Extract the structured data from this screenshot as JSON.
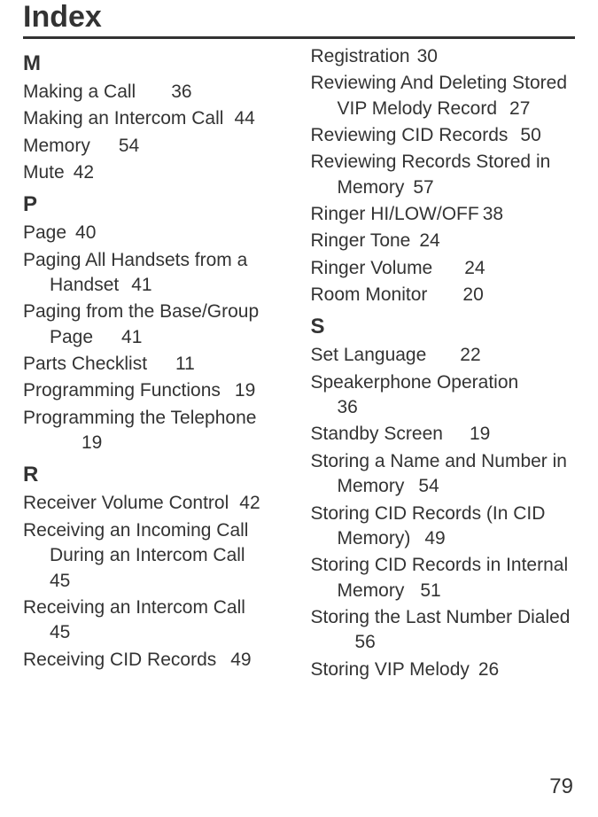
{
  "title": "Index",
  "pageNumber": "79",
  "sections": [
    {
      "letter": "M",
      "entries": [
        {
          "text": "Making a Call",
          "page": "36",
          "gap": 40
        },
        {
          "text": "Making an Intercom Call",
          "page": "44",
          "gap": 12
        },
        {
          "text": "Memory",
          "page": "54",
          "gap": 32
        },
        {
          "text": "Mute",
          "page": "42",
          "gap": 10
        }
      ]
    },
    {
      "letter": "P",
      "entries": [
        {
          "text": "Page",
          "page": "40",
          "gap": 10
        },
        {
          "text": "Paging All Handsets from a Handset",
          "page": "41",
          "gap": 14
        },
        {
          "text": "Paging from the Base/Group Page",
          "page": "41",
          "gap": 32
        },
        {
          "text": "Parts Checklist",
          "page": "11",
          "gap": 32
        },
        {
          "text": "Programming Functions",
          "page": "19",
          "gap": 16
        },
        {
          "text": "Programming the Telephone",
          "page": "19",
          "gap": 36
        }
      ]
    },
    {
      "letter": "R",
      "entries": [
        {
          "text": "Receiver Volume Control",
          "page": "42",
          "gap": 12
        },
        {
          "text": "Receiving an Incoming Call During an Intercom Call",
          "page": "45",
          "gap": 40
        },
        {
          "text": "Receiving an Intercom Call",
          "page": "45",
          "gap": 40
        },
        {
          "text": "Receiving CID Records",
          "page": "49",
          "gap": 16
        },
        {
          "text": "Registration",
          "page": "30",
          "gap": 8
        },
        {
          "text": "Reviewing And Deleting Stored VIP Melody Record",
          "page": "27",
          "gap": 14
        },
        {
          "text": "Reviewing CID Records",
          "page": "50",
          "gap": 14
        },
        {
          "text": "Reviewing Records Stored in Memory",
          "page": "57",
          "gap": 10
        },
        {
          "text": "Ringer HI/LOW/OFF",
          "page": "38",
          "gap": 4
        },
        {
          "text": "Ringer Tone",
          "page": "24",
          "gap": 10
        },
        {
          "text": "Ringer Volume",
          "page": "24",
          "gap": 36
        },
        {
          "text": "Room Monitor",
          "page": "20",
          "gap": 40
        }
      ]
    },
    {
      "letter": "S",
      "entries": [
        {
          "text": "Set Language",
          "page": "22",
          "gap": 38
        },
        {
          "text": "Speakerphone Operation",
          "page": "36",
          "gap": 42
        },
        {
          "text": "Standby Screen",
          "page": "19",
          "gap": 30
        },
        {
          "text": "Storing a Name and Number in Memory",
          "page": "54",
          "gap": 16
        },
        {
          "text": "Storing CID Records (In CID Memory)",
          "page": "49",
          "gap": 16
        },
        {
          "text": "Storing CID Records in Internal Memory",
          "page": "51",
          "gap": 18
        },
        {
          "text": "Storing the Last Number Dialed",
          "page": "56",
          "gap": 20
        },
        {
          "text": "Storing VIP Melody",
          "page": "26",
          "gap": 10
        }
      ]
    }
  ]
}
